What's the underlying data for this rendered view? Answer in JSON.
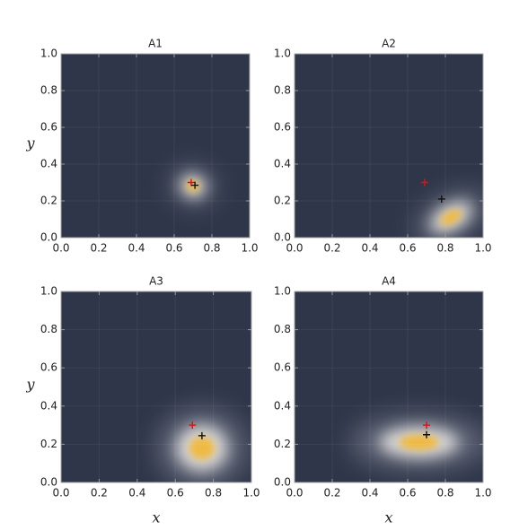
{
  "chart_data": [
    {
      "type": "density",
      "title": "A1",
      "ylabel": "y",
      "xlim": [
        0,
        1
      ],
      "ylim": [
        0,
        1
      ],
      "xticks": [
        {
          "value": 0,
          "label": "0.0"
        },
        0.2,
        0.4,
        0.6,
        0.8,
        {
          "value": 1,
          "label": "1.0"
        }
      ],
      "yticks": [
        {
          "value": 0,
          "label": "0.0"
        },
        0.2,
        0.4,
        0.6,
        0.8,
        {
          "value": 1,
          "label": "1.0"
        }
      ],
      "grid": true,
      "density": {
        "x": 0.7,
        "y": 0.28,
        "sx": 0.045,
        "sy": 0.04,
        "angle": -20
      },
      "markers": [
        {
          "x": 0.69,
          "y": 0.3,
          "color": "#e01010"
        },
        {
          "x": 0.71,
          "y": 0.285,
          "color": "#111111"
        }
      ]
    },
    {
      "type": "density",
      "title": "A2",
      "xlim": [
        0,
        1
      ],
      "ylim": [
        0,
        1
      ],
      "xticks": [
        {
          "value": 0,
          "label": "0.0"
        },
        0.2,
        0.4,
        0.6,
        0.8,
        {
          "value": 1,
          "label": "1.0"
        }
      ],
      "yticks": [
        {
          "value": 0,
          "label": "0.0"
        },
        0.2,
        0.4,
        0.6,
        0.8,
        {
          "value": 1,
          "label": "1.0"
        }
      ],
      "grid": true,
      "density": {
        "x": 0.83,
        "y": 0.11,
        "sx": 0.08,
        "sy": 0.045,
        "angle": 30
      },
      "markers": [
        {
          "x": 0.69,
          "y": 0.3,
          "color": "#e01010"
        },
        {
          "x": 0.78,
          "y": 0.21,
          "color": "#111111"
        }
      ]
    },
    {
      "type": "density",
      "title": "A3",
      "xlabel": "x",
      "ylabel": "y",
      "xlim": [
        0,
        1
      ],
      "ylim": [
        0,
        1
      ],
      "xticks": [
        {
          "value": 0,
          "label": "0.0"
        },
        0.2,
        0.4,
        0.6,
        0.8,
        {
          "value": 1,
          "label": "1.0"
        }
      ],
      "yticks": [
        {
          "value": 0,
          "label": "0.0"
        },
        0.2,
        0.4,
        0.6,
        0.8,
        {
          "value": 1,
          "label": "1.0"
        }
      ],
      "grid": true,
      "density": {
        "x": 0.74,
        "y": 0.18,
        "sx": 0.09,
        "sy": 0.08,
        "angle": 0
      },
      "markers": [
        {
          "x": 0.69,
          "y": 0.3,
          "color": "#e01010"
        },
        {
          "x": 0.74,
          "y": 0.245,
          "color": "#111111"
        }
      ]
    },
    {
      "type": "density",
      "title": "A4",
      "xlabel": "x",
      "xlim": [
        0,
        1
      ],
      "ylim": [
        0,
        1
      ],
      "xticks": [
        {
          "value": 0,
          "label": "0.0"
        },
        0.2,
        0.4,
        0.6,
        0.8,
        {
          "value": 1,
          "label": "1.0"
        }
      ],
      "yticks": [
        {
          "value": 0,
          "label": "0.0"
        },
        0.2,
        0.4,
        0.6,
        0.8,
        {
          "value": 1,
          "label": "1.0"
        }
      ],
      "grid": true,
      "density": {
        "x": 0.66,
        "y": 0.21,
        "sx": 0.14,
        "sy": 0.055,
        "angle": 0
      },
      "markers": [
        {
          "x": 0.7,
          "y": 0.3,
          "color": "#e01010"
        },
        {
          "x": 0.7,
          "y": 0.25,
          "color": "#111111"
        }
      ]
    }
  ]
}
